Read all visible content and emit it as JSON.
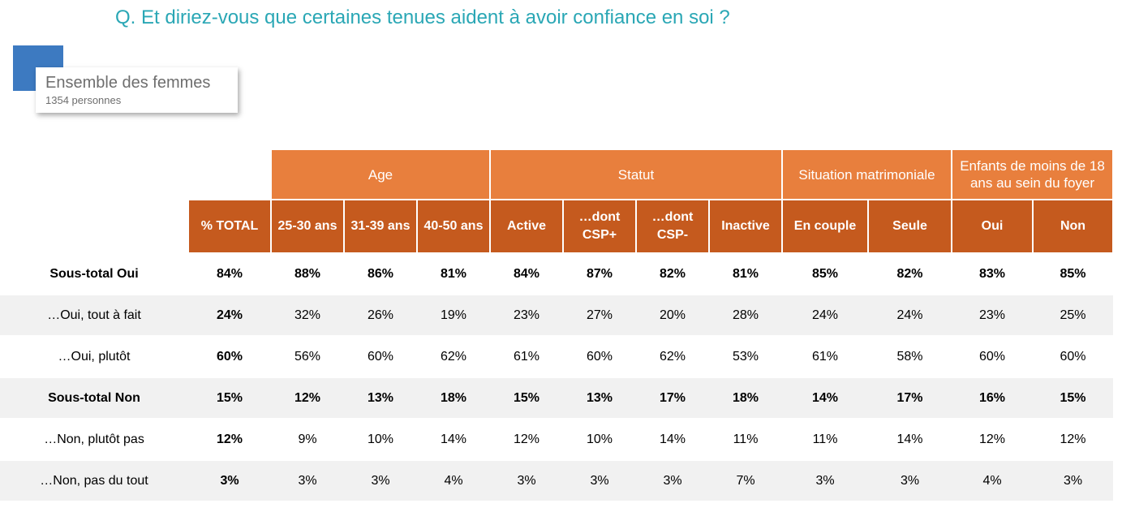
{
  "title": "Q. Et diriez-vous que certaines tenues aident à avoir confiance en soi ?",
  "sample": {
    "population": "Ensemble des femmes",
    "count": "1354 personnes"
  },
  "colors": {
    "title": "#2aa7b5",
    "group_header": "#e87f3d",
    "sub_header": "#c55a1e",
    "sample_accent": "#3d7ac1",
    "row_shade": "#f1f1f1"
  },
  "groups": [
    "Age",
    "Statut",
    "Situation matrimoniale",
    "Enfants de moins de 18 ans au sein du foyer"
  ],
  "columns": {
    "total": "% TOTAL",
    "age_25_30": "25-30 ans",
    "age_31_39": "31-39 ans",
    "age_40_50": "40-50 ans",
    "active": "Active",
    "csp_plus": "…dont CSP+",
    "csp_minus": "…dont CSP-",
    "inactive": "Inactive",
    "couple": "En couple",
    "seule": "Seule",
    "oui": "Oui",
    "non": "Non"
  },
  "rows": [
    {
      "label": "Sous-total Oui",
      "values": [
        "84%",
        "88%",
        "86%",
        "81%",
        "84%",
        "87%",
        "82%",
        "81%",
        "85%",
        "82%",
        "83%",
        "85%"
      ]
    },
    {
      "label": "…Oui, tout à fait",
      "values": [
        "24%",
        "32%",
        "26%",
        "19%",
        "23%",
        "27%",
        "20%",
        "28%",
        "24%",
        "24%",
        "23%",
        "25%"
      ]
    },
    {
      "label": "…Oui, plutôt",
      "values": [
        "60%",
        "56%",
        "60%",
        "62%",
        "61%",
        "60%",
        "62%",
        "53%",
        "61%",
        "58%",
        "60%",
        "60%"
      ]
    },
    {
      "label": "Sous-total Non",
      "values": [
        "15%",
        "12%",
        "13%",
        "18%",
        "15%",
        "13%",
        "17%",
        "18%",
        "14%",
        "17%",
        "16%",
        "15%"
      ]
    },
    {
      "label": "…Non, plutôt pas",
      "values": [
        "12%",
        "9%",
        "10%",
        "14%",
        "12%",
        "10%",
        "14%",
        "11%",
        "11%",
        "14%",
        "12%",
        "12%"
      ]
    },
    {
      "label": "…Non, pas du tout",
      "values": [
        "3%",
        "3%",
        "3%",
        "4%",
        "3%",
        "3%",
        "3%",
        "7%",
        "3%",
        "3%",
        "4%",
        "3%"
      ]
    }
  ]
}
